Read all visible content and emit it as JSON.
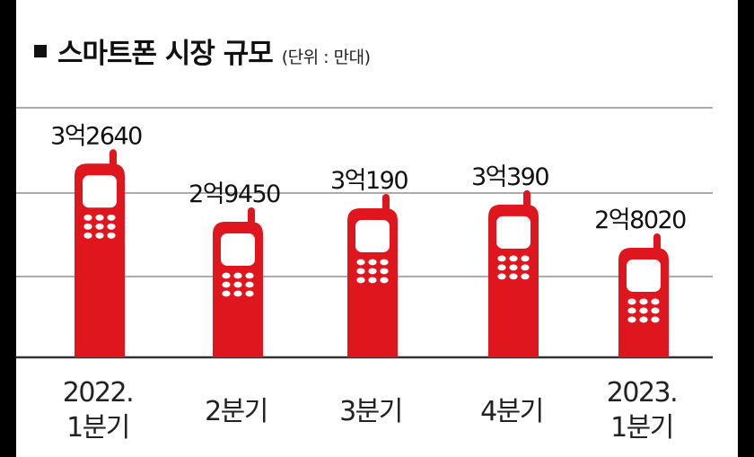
{
  "title": "스마트폰 시장 규모",
  "unit_note": "(단위 : 만대)",
  "colors": {
    "bar": "#e0161e",
    "key": "#ffffff",
    "grid": "#7a7a7a",
    "baseline": "#333333"
  },
  "chart_data": {
    "type": "bar",
    "categories": [
      [
        "2022.",
        "1분기"
      ],
      [
        "2분기"
      ],
      [
        "3분기"
      ],
      [
        "4분기"
      ],
      [
        "2023.",
        "1분기"
      ]
    ],
    "values": [
      32640,
      29450,
      30190,
      30390,
      28020
    ],
    "value_labels": [
      "3억2640",
      "2억9450",
      "3억190",
      "3억390",
      "2억8020"
    ],
    "title": "스마트폰 시장 규모",
    "unit": "(단위 : 만대)",
    "grid": true,
    "legend": "none"
  }
}
